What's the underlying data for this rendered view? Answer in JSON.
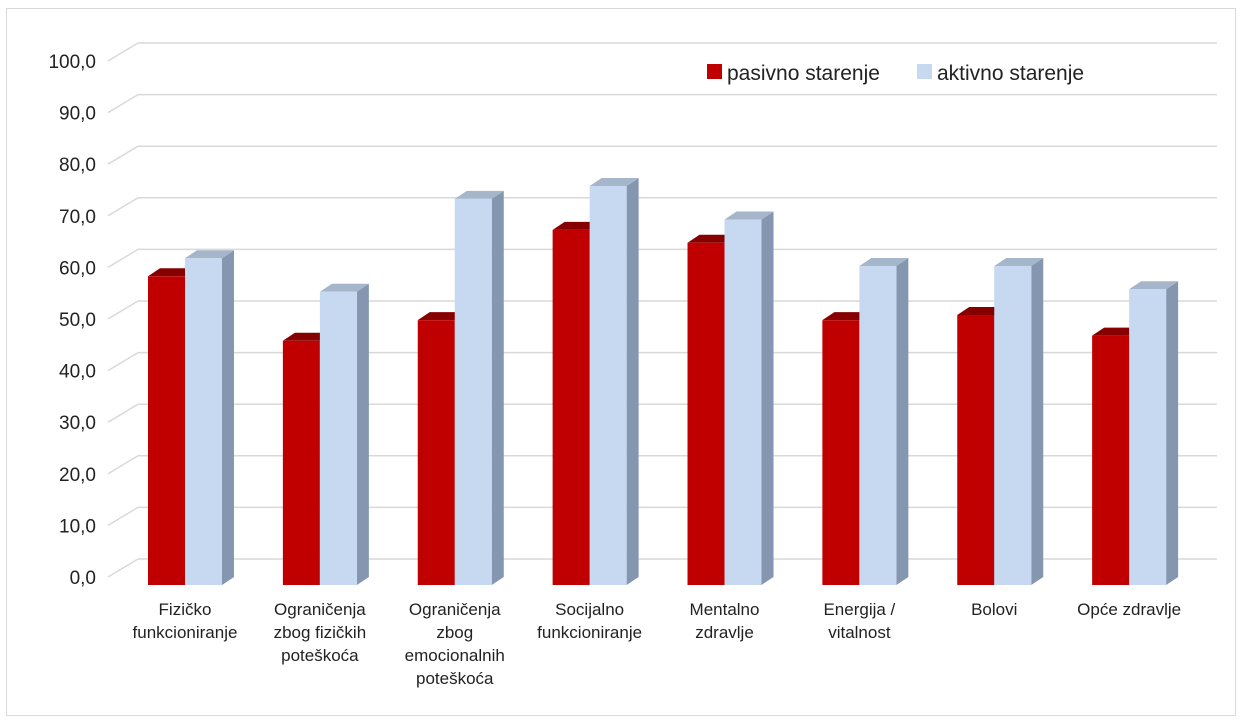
{
  "chart_data": {
    "type": "bar",
    "title": "",
    "xlabel": "",
    "ylabel": "",
    "ylim": [
      0,
      100
    ],
    "y_ticks": [
      "0,0",
      "10,0",
      "20,0",
      "30,0",
      "40,0",
      "50,0",
      "60,0",
      "70,0",
      "80,0",
      "90,0",
      "100,0"
    ],
    "grid": true,
    "legend_position": "top-right",
    "categories": [
      [
        "Fizičko",
        "funkcioniranje"
      ],
      [
        "Ograničenja",
        "zbog fizičkih",
        "poteškoća"
      ],
      [
        "Ograničenja",
        "zbog",
        "emocionalnih",
        "poteškoća"
      ],
      [
        "Socijalno",
        "funkcioniranje"
      ],
      [
        "Mentalno",
        "zdravlje"
      ],
      [
        "Energija /",
        "vitalnost"
      ],
      [
        "Bolovi"
      ],
      [
        "Opće zdravlje"
      ]
    ],
    "series": [
      {
        "name": "pasivno starenje",
        "color": "#c00000",
        "values": [
          57.5,
          45.0,
          49.0,
          66.5,
          64.0,
          49.0,
          50.0,
          46.0
        ]
      },
      {
        "name": "aktivno starenje",
        "color": "#c6d9f1",
        "values": [
          61.0,
          54.5,
          72.5,
          75.0,
          68.5,
          59.5,
          59.5,
          55.0
        ]
      }
    ]
  }
}
